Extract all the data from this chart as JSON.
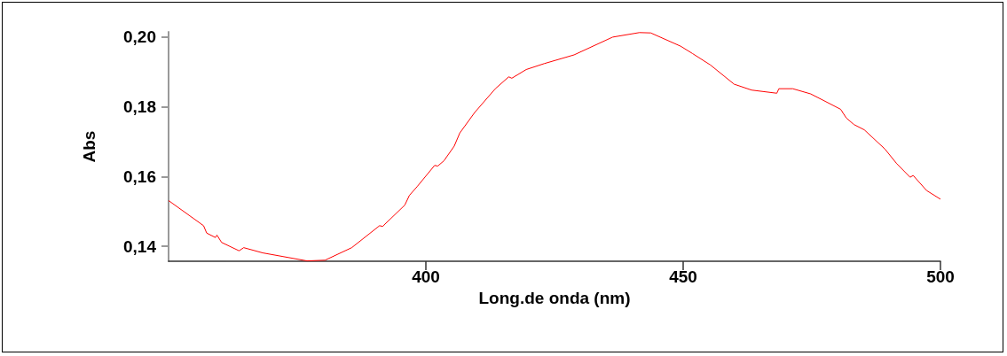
{
  "chart_data": {
    "type": "line",
    "xlabel": "Long.de onda (nm)",
    "ylabel": "Abs",
    "x": [
      350,
      356.8,
      357.4,
      359.1,
      359.4,
      360.3,
      363.7,
      364.6,
      368.3,
      376.9,
      380.4,
      385.6,
      391.0,
      391.6,
      395.9,
      396.8,
      398.3,
      401.7,
      402.3,
      403.5,
      405.5,
      406.6,
      409.5,
      413.5,
      416.1,
      416.7,
      419.5,
      423.0,
      428.8,
      436.3,
      441.5,
      443.7,
      449.5,
      451.8,
      455.3,
      459.9,
      463.3,
      468.2,
      468.6,
      471.3,
      474.8,
      480.6,
      481.7,
      483.2,
      485.2,
      489.2,
      491.5,
      494.1,
      494.7,
      497.3,
      500
    ],
    "series": [
      {
        "color": "#ff0000",
        "values": [
          0.1531,
          0.1459,
          0.1438,
          0.1425,
          0.1432,
          0.1411,
          0.1387,
          0.1396,
          0.1381,
          0.1358,
          0.136,
          0.1396,
          0.1459,
          0.1457,
          0.1518,
          0.1546,
          0.1571,
          0.1632,
          0.163,
          0.1645,
          0.1687,
          0.1725,
          0.1784,
          0.1852,
          0.1886,
          0.1882,
          0.1907,
          0.1924,
          0.1949,
          0.2,
          0.2013,
          0.2012,
          0.1974,
          0.1953,
          0.192,
          0.1865,
          0.1848,
          0.1839,
          0.1852,
          0.1852,
          0.1837,
          0.1793,
          0.1768,
          0.1749,
          0.1734,
          0.1679,
          0.1637,
          0.1598,
          0.1603,
          0.156,
          0.1535
        ]
      }
    ],
    "xlim": [
      350,
      500
    ],
    "xticks": [
      400,
      450,
      500
    ],
    "ylim": [
      0.1357,
      0.2015
    ],
    "yticks": [
      {
        "value": 0.14,
        "label": "0,14"
      },
      {
        "value": 0.16,
        "label": "0,16"
      },
      {
        "value": 0.18,
        "label": "0,18"
      },
      {
        "value": 0.2,
        "label": "0,20"
      }
    ],
    "grid": false,
    "marker": "none",
    "line_style": "solid"
  }
}
